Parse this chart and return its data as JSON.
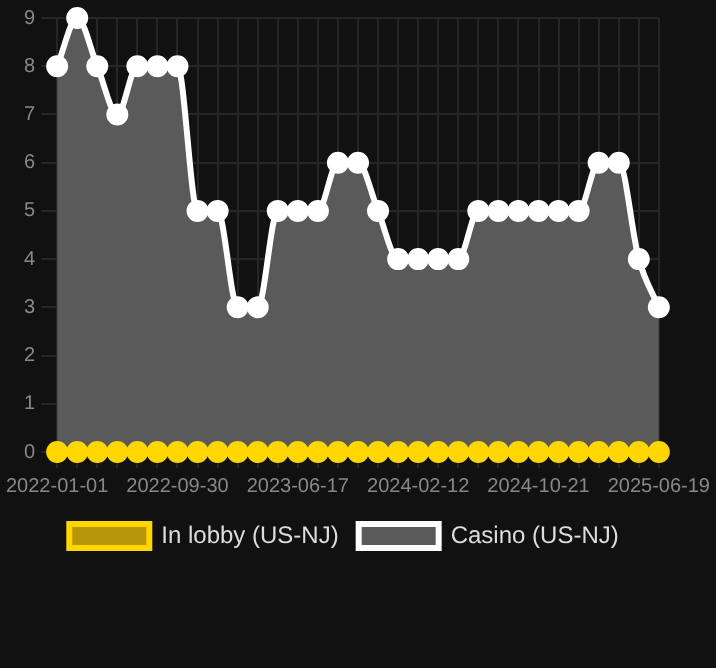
{
  "chart_data": {
    "type": "line",
    "categories": [
      "2022-01-01",
      null,
      null,
      null,
      null,
      null,
      "2022-09-30",
      null,
      null,
      null,
      null,
      null,
      "2023-06-17",
      null,
      null,
      null,
      null,
      null,
      "2024-02-12",
      null,
      null,
      null,
      null,
      null,
      "2024-10-21",
      null,
      null,
      null,
      null,
      null,
      "2025-06-19"
    ],
    "series": [
      {
        "name": "In lobby (US-NJ)",
        "color": "#ffd700",
        "type": "line",
        "values": [
          0,
          0,
          0,
          0,
          0,
          0,
          0,
          0,
          0,
          0,
          0,
          0,
          0,
          0,
          0,
          0,
          0,
          0,
          0,
          0,
          0,
          0,
          0,
          0,
          0,
          0,
          0,
          0,
          0,
          0,
          0
        ]
      },
      {
        "name": "Casino (US-NJ)",
        "color": "#ffffff",
        "type": "area",
        "values": [
          8,
          9,
          8,
          7,
          8,
          8,
          8,
          5,
          5,
          3,
          3,
          5,
          5,
          5,
          6,
          6,
          5,
          4,
          4,
          4,
          4,
          5,
          5,
          5,
          5,
          5,
          5,
          6,
          6,
          4,
          3
        ]
      }
    ],
    "ylim": [
      0,
      9
    ],
    "yticks": [
      0,
      1,
      2,
      3,
      4,
      5,
      6,
      7,
      8,
      9
    ],
    "grid": true,
    "legend": "bottom",
    "marker": "circle"
  }
}
